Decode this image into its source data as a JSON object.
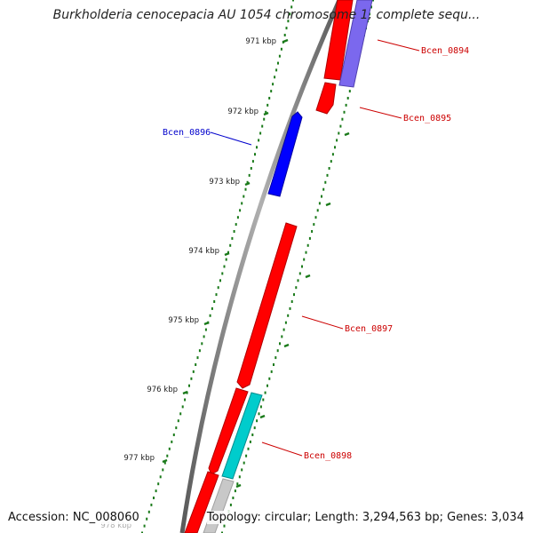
{
  "title": "Burkholderia cenocepacia AU 1054 chromosome 1, complete sequ...",
  "accession": "Accession: NC_008060",
  "topology": "Topology: circular; Length: 3,294,563 bp; Genes: 3,034",
  "scale_labels": [
    "971 kbp",
    "972 kbp",
    "973 kbp",
    "974 kbp",
    "975 kbp",
    "976 kbp",
    "977 kbp",
    "978 kbp"
  ],
  "genes": [
    {
      "name": "Bcen_0894",
      "strand": "plus",
      "color": "#6a5acd"
    },
    {
      "name": "Bcen_0895",
      "strand": "plus",
      "color": "#cc0000"
    },
    {
      "name": "Bcen_0896",
      "strand": "minus",
      "color": "#0000cc"
    },
    {
      "name": "Bcen_0897",
      "strand": "plus",
      "color": "#cc0000"
    },
    {
      "name": "Bcen_0898",
      "strand": "plus",
      "color": "#cc0000"
    }
  ],
  "colors": {
    "cds_plus": "#ff0000",
    "cds_minus": "#0000ff",
    "cds_purple": "#7b68ee",
    "cds_cyan": "#00cccc",
    "cds_gray": "#c8c8c8",
    "backbone": "#7f7f7f",
    "ticks": "#1a7a1a"
  }
}
